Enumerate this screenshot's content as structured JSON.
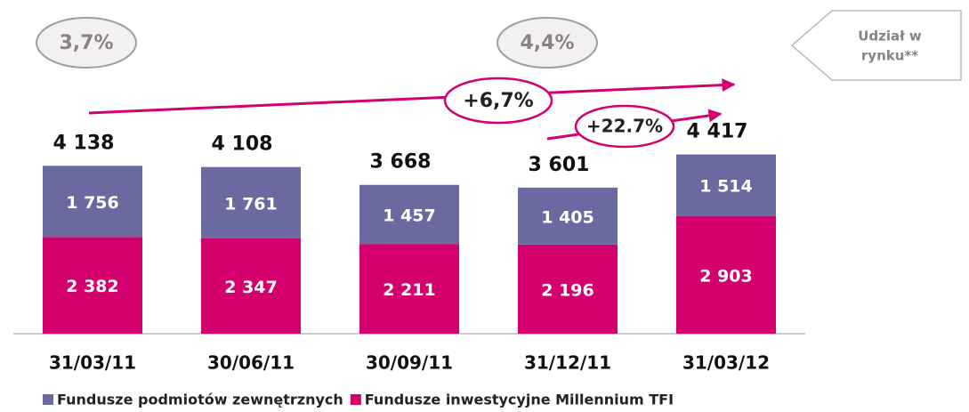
{
  "chart_data": {
    "type": "stacked_bar",
    "categories": [
      "31/03/11",
      "30/06/11",
      "30/09/11",
      "31/12/11",
      "31/03/12"
    ],
    "series": [
      {
        "name": "Fundusze inwestycyjne Millennium TFI",
        "color": "#d4006e",
        "values": [
          2382,
          2347,
          2211,
          2196,
          2903
        ],
        "value_labels": [
          "2 382",
          "2 347",
          "2 211",
          "2 196",
          "2 903"
        ]
      },
      {
        "name": "Fundusze podmiotów zewnętrznych",
        "color": "#6b6aa0",
        "values": [
          1756,
          1761,
          1457,
          1405,
          1514
        ],
        "value_labels": [
          "1 756",
          "1 761",
          "1 457",
          "1 405",
          "1 514"
        ]
      }
    ],
    "totals": [
      4138,
      4108,
      3668,
      3601,
      4417
    ],
    "total_labels": [
      "4 138",
      "4 108",
      "3 668",
      "3 601",
      "4 417"
    ],
    "ylim": [
      0,
      5000
    ],
    "annotations": {
      "start_share": "3,7%",
      "end_share": "4,4%",
      "market_share_label": [
        "Udział w",
        "rynku**"
      ],
      "total_growth": "+6,7%",
      "quarter_growth": "+22.7%"
    }
  }
}
